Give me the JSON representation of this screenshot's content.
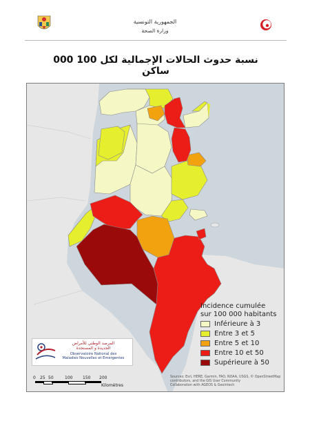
{
  "header": {
    "republic_ar": "الجمهورية التونسية",
    "ministry_ar": "وزارة الصحة"
  },
  "title_ar": "نسبة حدوث الحالات الإجمالية لكل 100 000 ساكن",
  "legend": {
    "title_line1": "Incidence cumulée",
    "title_line2": "sur 100 000 habitants",
    "items": [
      {
        "label": "Inférieure à 3",
        "color": "#f5f8c4"
      },
      {
        "label": "Entre 3 et 5",
        "color": "#e6ef2e"
      },
      {
        "label": "Entre 5 et 10",
        "color": "#f3a20f"
      },
      {
        "label": "Entre 10 et 50",
        "color": "#ec1c16"
      },
      {
        "label": "Supérieure à 50",
        "color": "#9b0a0a"
      }
    ]
  },
  "observatory": {
    "name_ar_line1": "المرصد الوطني للأمراض",
    "name_ar_line2": "الجديدة و المستجدة",
    "name_fr_line1": "Observatoire National des",
    "name_fr_line2": "Maladies Nouvelles et Emergentes"
  },
  "scale": {
    "labels": [
      "0",
      "25",
      "50",
      "100",
      "150",
      "200"
    ],
    "unit": "Kilomètres"
  },
  "sources": {
    "line1": "Sources: Esri, HERE, Garmin, FAO, NOAA, USGS, © OpenStreetMap",
    "line2": "contributors, and the GIS User Community",
    "line3": "Collaboration with AGEOS & Geointech"
  },
  "colors": {
    "inferieure_3": "#f5f8c4",
    "entre_3_5": "#e6ef2e",
    "entre_5_10": "#f3a20f",
    "entre_10_50": "#ec1c16",
    "superieure_50": "#9b0a0a",
    "land": "#e7e7e7",
    "sea": "#cdd6dc"
  }
}
